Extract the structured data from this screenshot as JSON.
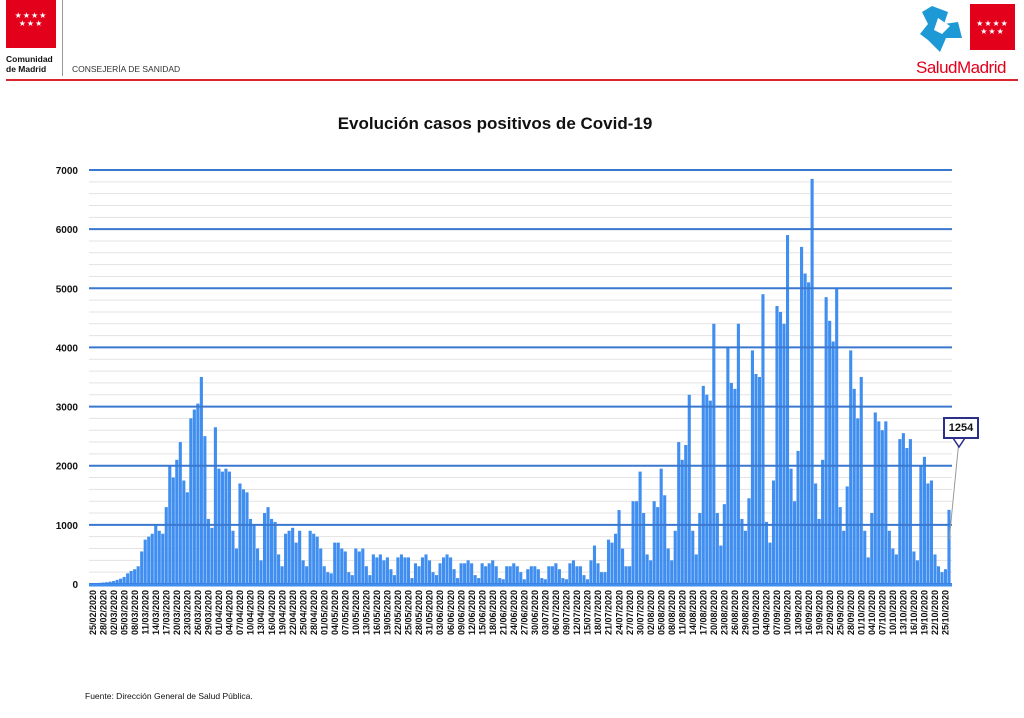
{
  "header": {
    "org_name_line1": "Comunidad",
    "org_name_line2": "de Madrid",
    "department": "CONSEJERÍA DE SANIDAD",
    "brand": "SaludMadrid",
    "stars": "★★★★ ★★★"
  },
  "footer": {
    "source": "Fuente: Dirección General de Salud Pública."
  },
  "colors": {
    "bar": "#3f8ef0",
    "major_grid": "#3a78d0",
    "minor_grid": "#e3e3e3",
    "accent": "#e3001b",
    "callout_border": "#2b2f8a"
  },
  "chart_data": {
    "type": "bar",
    "title": "Evolución casos positivos de Covid-19",
    "xlabel": "",
    "ylabel": "",
    "ylim": [
      0,
      7000
    ],
    "y_ticks": [
      "0",
      "1000",
      "2000",
      "3000",
      "4000",
      "5000",
      "6000",
      "7000"
    ],
    "y_minor_step": 200,
    "start_date": "25/02/2020",
    "end_date": "26/10/2020",
    "x_tick_step_days": 3,
    "x_tick_labels": [
      "25/02/2020",
      "28/02/2020",
      "02/03/2020",
      "05/03/2020",
      "08/03/2020",
      "11/03/2020",
      "14/03/2020",
      "17/03/2020",
      "20/03/2020",
      "23/03/2020",
      "26/03/2020",
      "29/03/2020",
      "01/04/2020",
      "04/04/2020",
      "07/04/2020",
      "10/04/2020",
      "13/04/2020",
      "16/04/2020",
      "19/04/2020",
      "22/04/2020",
      "25/04/2020",
      "28/04/2020",
      "01/05/2020",
      "04/05/2020",
      "07/05/2020",
      "10/05/2020",
      "13/05/2020",
      "16/05/2020",
      "19/05/2020",
      "22/05/2020",
      "25/05/2020",
      "28/05/2020",
      "31/05/2020",
      "03/06/2020",
      "06/06/2020",
      "09/06/2020",
      "12/06/2020",
      "15/06/2020",
      "18/06/2020",
      "21/06/2020",
      "24/06/2020",
      "27/06/2020",
      "30/06/2020",
      "03/07/2020",
      "06/07/2020",
      "09/07/2020",
      "12/07/2020",
      "15/07/2020",
      "18/07/2020",
      "21/07/2020",
      "24/07/2020",
      "27/07/2020",
      "30/07/2020",
      "02/08/2020",
      "05/08/2020",
      "08/08/2020",
      "11/08/2020",
      "14/08/2020",
      "17/08/2020",
      "20/08/2020",
      "23/08/2020",
      "26/08/2020",
      "29/08/2020",
      "01/09/2020",
      "04/09/2020",
      "07/09/2020",
      "10/09/2020",
      "13/09/2020",
      "16/09/2020",
      "19/09/2020",
      "22/09/2020",
      "25/09/2020",
      "28/09/2020",
      "01/10/2020",
      "04/10/2020",
      "07/10/2020",
      "10/10/2020",
      "13/10/2020",
      "16/10/2020",
      "19/10/2020",
      "22/10/2020",
      "25/10/2020"
    ],
    "values": [
      10,
      15,
      20,
      25,
      30,
      40,
      50,
      70,
      90,
      120,
      180,
      220,
      250,
      300,
      550,
      750,
      800,
      850,
      1000,
      900,
      850,
      1300,
      2000,
      1800,
      2100,
      2400,
      1750,
      1550,
      2800,
      2950,
      3050,
      3500,
      2500,
      1100,
      950,
      2650,
      1950,
      1900,
      1950,
      1900,
      900,
      600,
      1700,
      1600,
      1550,
      1100,
      1000,
      600,
      400,
      1200,
      1300,
      1100,
      1050,
      500,
      300,
      850,
      900,
      950,
      700,
      900,
      400,
      300,
      900,
      850,
      800,
      600,
      300,
      200,
      180,
      700,
      700,
      600,
      550,
      200,
      150,
      600,
      550,
      600,
      300,
      150,
      500,
      450,
      500,
      400,
      450,
      250,
      150,
      450,
      500,
      450,
      450,
      100,
      350,
      300,
      450,
      500,
      400,
      200,
      150,
      350,
      450,
      500,
      450,
      250,
      100,
      350,
      350,
      400,
      350,
      150,
      100,
      350,
      300,
      350,
      400,
      300,
      100,
      80,
      300,
      300,
      350,
      300,
      200,
      80,
      250,
      300,
      300,
      250,
      100,
      80,
      300,
      300,
      350,
      250,
      100,
      80,
      350,
      400,
      300,
      300,
      150,
      80,
      400,
      650,
      350,
      200,
      200,
      750,
      700,
      850,
      1250,
      600,
      300,
      300,
      1400,
      1400,
      1900,
      1200,
      500,
      400,
      1400,
      1300,
      1950,
      1500,
      600,
      400,
      900,
      2400,
      2100,
      2350,
      3200,
      900,
      500,
      1200,
      3350,
      3200,
      3100,
      4400,
      1200,
      650,
      1350,
      4000,
      3400,
      3300,
      4400,
      1100,
      900,
      1450,
      3950,
      3550,
      3500,
      4900,
      1050,
      700,
      1750,
      4700,
      4600,
      4400,
      5900,
      1950,
      1400,
      2250,
      5700,
      5250,
      5100,
      6850,
      1700,
      1100,
      2100,
      4850,
      4450,
      4100,
      5000,
      1300,
      900,
      1650,
      3950,
      3300,
      2800,
      3500,
      900,
      450,
      1200,
      2900,
      2750,
      2600,
      2750,
      900,
      600,
      500,
      2450,
      2550,
      2300,
      2450,
      550,
      400,
      2000,
      2150,
      1700,
      1750,
      500,
      300,
      200,
      250,
      1254
    ],
    "annotations": [
      {
        "date": "26/10/2020",
        "label": "1254"
      }
    ],
    "grid": true,
    "legend": "none"
  }
}
